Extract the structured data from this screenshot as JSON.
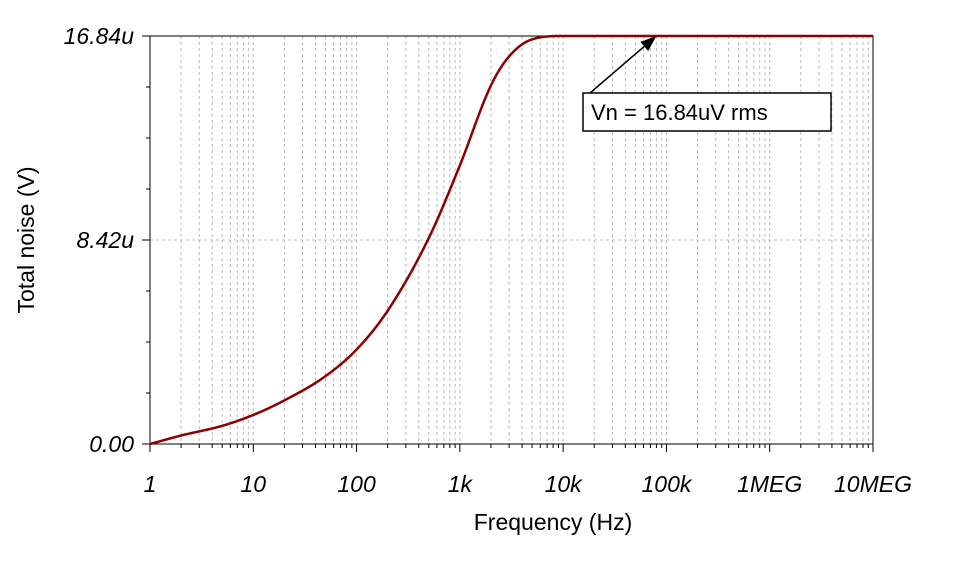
{
  "chart_data": {
    "type": "line",
    "title": "",
    "xlabel": "Frequency (Hz)",
    "ylabel": "Total noise (V)",
    "xscale": "log",
    "xlim": [
      1,
      10000000
    ],
    "ylim": [
      0,
      16.84
    ],
    "grid": true,
    "x_tick_values": [
      1,
      10,
      100,
      1000,
      10000,
      100000,
      1000000,
      10000000
    ],
    "x_tick_labels": [
      "1",
      "10",
      "100",
      "1k",
      "10k",
      "100k",
      "1MEG",
      "10MEG"
    ],
    "y_tick_values": [
      0,
      8.42,
      16.84
    ],
    "y_tick_labels": [
      "0.00",
      "8.42u",
      "16.84u"
    ],
    "series": [
      {
        "name": "Total noise",
        "color": "#8b0000",
        "x": [
          1,
          2,
          5,
          10,
          20,
          50,
          100,
          200,
          500,
          1000,
          2000,
          3000,
          5000,
          10000,
          100000,
          1000000,
          10000000
        ],
        "y": [
          0,
          0.35,
          0.75,
          1.2,
          1.8,
          2.8,
          3.9,
          5.5,
          8.5,
          11.5,
          14.8,
          16.0,
          16.7,
          16.84,
          16.84,
          16.84,
          16.84
        ]
      }
    ],
    "annotations": [
      {
        "text": "Vn = 16.84uV rms",
        "points_to": {
          "x": 80000,
          "y": 16.84
        }
      }
    ]
  }
}
